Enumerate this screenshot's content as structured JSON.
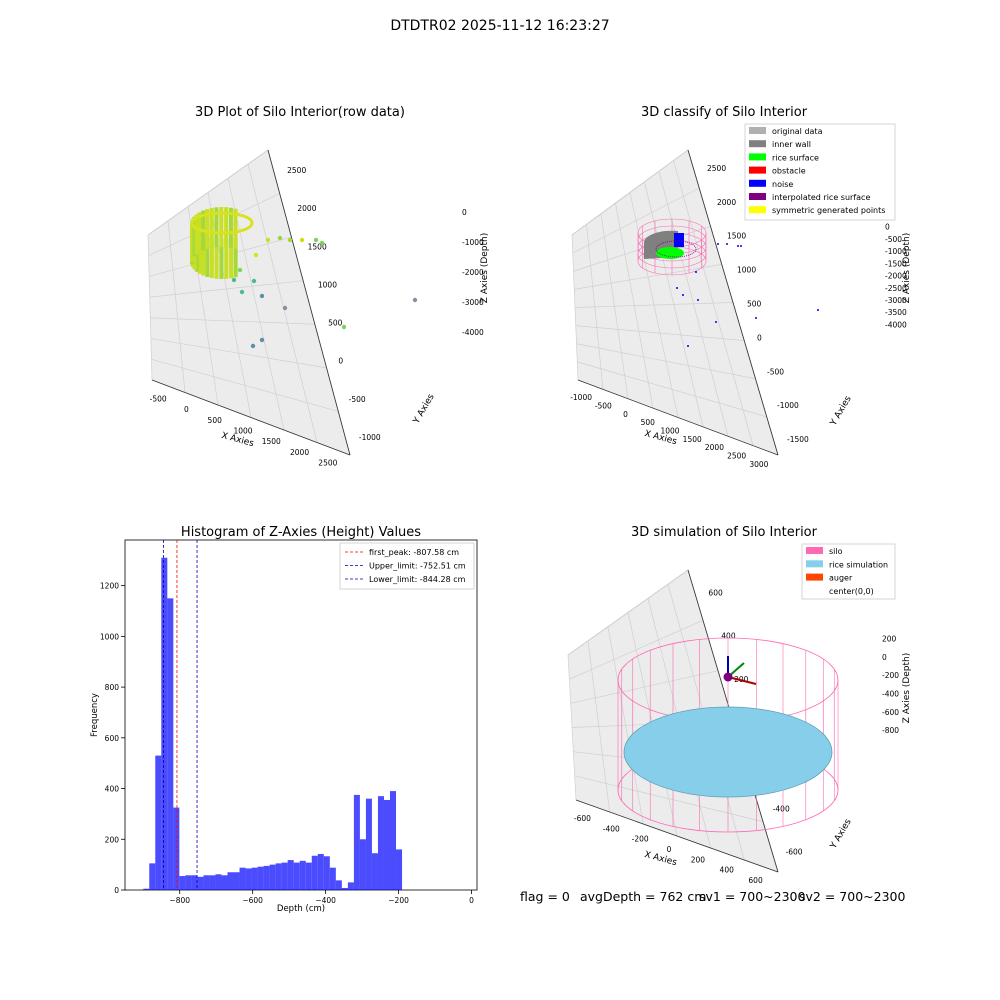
{
  "suptitle": "DTDTR02 2025-11-12 16:23:27",
  "footer": {
    "flag": "flag = 0",
    "avg": "avgDepth = 762 cm",
    "sv1": "sv1 = 700~2300",
    "sv2": "sv2 = 700~2300"
  },
  "chart_data": [
    {
      "type": "scatter",
      "title": "3D Plot of Silo Interior(row data)",
      "xlabel": "X Axies",
      "ylabel": "Y Axies",
      "zlabel": "Z Axies (Depth)",
      "x_ticks": [
        "-500",
        "0",
        "500",
        "1000",
        "1500",
        "2000",
        "2500"
      ],
      "y_ticks": [
        "-1000",
        "-500",
        "0",
        "500",
        "1000",
        "1500",
        "2000",
        "2500"
      ],
      "z_ticks": [
        "0",
        "-1000",
        "-2000",
        "-3000",
        "-4000"
      ],
      "colors": [
        "#d9e21f",
        "#7ed35a",
        "#4fb98a",
        "#5e8fa6",
        "#8a8fa0"
      ]
    },
    {
      "type": "scatter",
      "title": "3D classify of Silo Interior",
      "xlabel": "X Axies",
      "ylabel": "Y Axies",
      "zlabel": "Z Axies (Depth)",
      "x_ticks": [
        "-1000",
        "-500",
        "0",
        "500",
        "1000",
        "1500",
        "2000",
        "2500",
        "3000"
      ],
      "y_ticks": [
        "-1500",
        "-1000",
        "-500",
        "0",
        "500",
        "1000",
        "1500",
        "2000",
        "2500"
      ],
      "z_ticks": [
        "0",
        "-500",
        "-1000",
        "-1500",
        "-2000",
        "-2500",
        "-3000",
        "-3500",
        "-4000"
      ],
      "legend": [
        {
          "label": "original data",
          "color": "#b0b0b0"
        },
        {
          "label": "inner wall",
          "color": "#808080"
        },
        {
          "label": "rice surface",
          "color": "#00ff00"
        },
        {
          "label": "obstacle",
          "color": "#ff0000"
        },
        {
          "label": "noise",
          "color": "#0000ff"
        },
        {
          "label": "interpolated rice surface",
          "color": "#800080"
        },
        {
          "label": "symmetric generated points",
          "color": "#ffff00"
        }
      ]
    },
    {
      "type": "bar",
      "title": "Histogram of Z-Axies (Height) Values",
      "xlabel": "Depth (cm)",
      "ylabel": "Frequency",
      "xlim": [
        -950,
        15
      ],
      "ylim": [
        0,
        1380
      ],
      "x_ticks": [
        -800,
        -600,
        -400,
        -200,
        0
      ],
      "y_ticks": [
        0,
        200,
        400,
        600,
        800,
        1000,
        1200
      ],
      "bin_edges_start": -900,
      "bin_width": 16.5,
      "values": [
        5,
        105,
        530,
        1310,
        1150,
        325,
        55,
        58,
        58,
        52,
        58,
        58,
        62,
        58,
        70,
        70,
        88,
        85,
        88,
        92,
        95,
        100,
        105,
        108,
        118,
        108,
        115,
        108,
        135,
        142,
        133,
        88,
        38,
        8,
        30,
        375,
        200,
        360,
        145,
        370,
        355,
        390,
        160
      ],
      "color": "#0000ff",
      "lines": [
        {
          "label": "first_peak: -807.58 cm",
          "x": -807.58,
          "color": "#ff0000"
        },
        {
          "label": "Upper_limit: -752.51 cm",
          "x": -752.51,
          "color": "#0000aa"
        },
        {
          "label": "Lower_limit: -844.28 cm",
          "x": -844.28,
          "color": "#0000aa"
        }
      ]
    },
    {
      "type": "scatter",
      "title": "3D simulation of Silo Interior",
      "xlabel": "X Axies",
      "ylabel": "Y Axies",
      "zlabel": "Z Axies (Depth)",
      "x_ticks": [
        "-600",
        "-400",
        "-200",
        "0",
        "200",
        "400",
        "600"
      ],
      "y_ticks": [
        "-600",
        "-400",
        "-200",
        "0",
        "200",
        "400",
        "600"
      ],
      "z_ticks": [
        "200",
        "0",
        "-200",
        "-400",
        "-600",
        "-800"
      ],
      "legend": [
        {
          "label": "silo",
          "color": "#ff69b4"
        },
        {
          "label": "rice simulation",
          "color": "#87ceeb"
        },
        {
          "label": "auger",
          "color": "#ff4500"
        },
        {
          "label": "center(0,0)",
          "color": ""
        }
      ]
    }
  ]
}
